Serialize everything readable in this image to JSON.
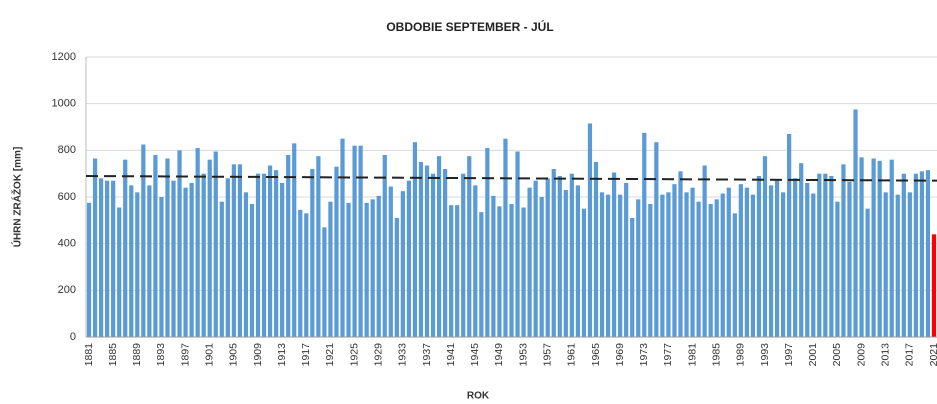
{
  "chart_data": {
    "type": "bar",
    "title": "OBDOBIE SEPTEMBER - JÚL",
    "x_label": "ROK",
    "y_label": "ÚHRN ZRÁŽOK [mm]",
    "categories": [
      "1881",
      null,
      null,
      null,
      "1885",
      null,
      null,
      null,
      "1889",
      null,
      null,
      null,
      "1893",
      null,
      null,
      null,
      "1897",
      null,
      null,
      null,
      "1901",
      null,
      null,
      null,
      "1905",
      null,
      null,
      null,
      "1909",
      null,
      null,
      null,
      "1913",
      null,
      null,
      null,
      "1917",
      null,
      null,
      null,
      "1921",
      null,
      null,
      null,
      "1925",
      null,
      null,
      null,
      "1929",
      null,
      null,
      null,
      "1933",
      null,
      null,
      null,
      "1937",
      null,
      null,
      null,
      "1941",
      null,
      null,
      null,
      "1945",
      null,
      null,
      null,
      "1949",
      null,
      null,
      null,
      "1953",
      null,
      null,
      null,
      "1957",
      null,
      null,
      null,
      "1961",
      null,
      null,
      null,
      "1965",
      null,
      null,
      null,
      "1969",
      null,
      null,
      null,
      "1973",
      null,
      null,
      null,
      "1977",
      null,
      null,
      null,
      "1981",
      null,
      null,
      null,
      "1985",
      null,
      null,
      null,
      "1989",
      null,
      null,
      null,
      "1993",
      null,
      null,
      null,
      "1997",
      null,
      null,
      null,
      "2001",
      null,
      null,
      null,
      "2005",
      null,
      null,
      null,
      "2009",
      null,
      null,
      null,
      "2013",
      null,
      null,
      null,
      "2017",
      null,
      null,
      null,
      "2021"
    ],
    "values": [
      575,
      765,
      680,
      670,
      670,
      555,
      760,
      650,
      620,
      825,
      650,
      780,
      600,
      765,
      670,
      800,
      640,
      660,
      810,
      700,
      760,
      795,
      580,
      680,
      740,
      740,
      620,
      570,
      700,
      700,
      735,
      715,
      660,
      780,
      830,
      545,
      530,
      720,
      775,
      470,
      580,
      730,
      850,
      575,
      820,
      820,
      575,
      590,
      605,
      780,
      645,
      510,
      625,
      670,
      835,
      750,
      735,
      700,
      775,
      720,
      565,
      565,
      700,
      775,
      650,
      535,
      810,
      605,
      560,
      850,
      570,
      795,
      555,
      640,
      670,
      600,
      680,
      720,
      690,
      630,
      700,
      650,
      550,
      915,
      750,
      620,
      610,
      705,
      610,
      660,
      510,
      590,
      875,
      570,
      835,
      610,
      620,
      655,
      710,
      620,
      640,
      580,
      735,
      570,
      590,
      615,
      640,
      530,
      655,
      640,
      610,
      690,
      775,
      650,
      670,
      620,
      870,
      680,
      745,
      660,
      615,
      700,
      700,
      690,
      580,
      740,
      665,
      975,
      770,
      550,
      765,
      755,
      620,
      760,
      610,
      700,
      620,
      700,
      710,
      715,
      440
    ],
    "color": "#5b9bd5",
    "highlight_last_color": "#ff0000",
    "trend_line": {
      "start": 690,
      "end": 670,
      "color": "#222222"
    },
    "ylim": [
      0,
      1200
    ],
    "yticks": [
      0,
      200,
      400,
      600,
      800,
      1000,
      1200
    ],
    "grid": true
  }
}
